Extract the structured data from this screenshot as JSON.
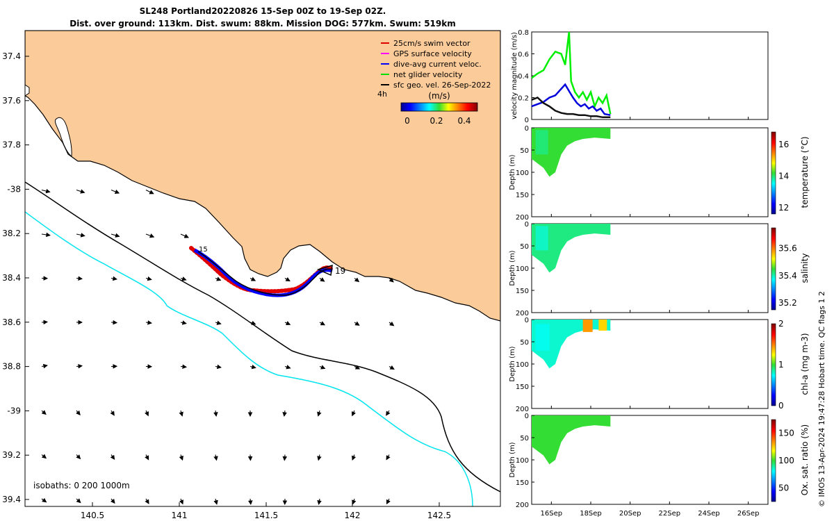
{
  "title": {
    "line1": "SL248 Portland20220826 15-Sep 00Z to 19-Sep 02Z.",
    "line2": "Dist. over ground: 113km. Dist. swum: 88km. Mission DOG: 577km. Swum: 519km"
  },
  "map": {
    "lon_ticks": [
      "140.5",
      "141",
      "141.5",
      "142",
      "142.5"
    ],
    "lat_ticks": [
      "37.4",
      "37.6",
      "37.8",
      "-38",
      "38.2",
      "38.4",
      "38.6",
      "38.8",
      "-39",
      "39.2",
      "39.4"
    ],
    "isobath_label": "isobaths: 0   200  1000m",
    "track_labels": [
      "15",
      "19"
    ],
    "legend": [
      {
        "label": "25cm/s swim vector",
        "color": "#e00000"
      },
      {
        "label": "GPS surface velocity",
        "color": "#ff00ff"
      },
      {
        "label": "dive-avg current veloc.",
        "color": "#0000ff"
      },
      {
        "label": "net glider velocity",
        "color": "#00e000"
      },
      {
        "label": "sfc geo. vel. 26-Sep-2022",
        "color": "#000000"
      }
    ],
    "legend_extra": "4h",
    "colorbar_title": "(m/s)",
    "colorbar_ticks": [
      "0",
      "0.2",
      "0.4"
    ],
    "colors": {
      "land": "#fccb9a",
      "sea": "#ffffff",
      "isobath_200": "#000000",
      "isobath_1000": "#00e5ee"
    }
  },
  "time_axis": {
    "ticks": [
      "16Sep",
      "18Sep",
      "20Sep",
      "22Sep",
      "24Sep",
      "26Sep"
    ]
  },
  "chart_data": [
    {
      "type": "line",
      "ylabel": "velocity magnitude (m/s)",
      "ylim": [
        0,
        0.8
      ],
      "yticks": [
        "0",
        "0.2",
        "0.4",
        "0.6",
        "0.8"
      ],
      "xlim": [
        15.0,
        27.0
      ],
      "series": [
        {
          "color": "#00ee00",
          "x": [
            15.0,
            15.3,
            15.6,
            15.9,
            16.2,
            16.5,
            16.7,
            16.9,
            17.0,
            17.2,
            17.4,
            17.6,
            17.8,
            18.0,
            18.2,
            18.4,
            18.6,
            18.8,
            19.0
          ],
          "y": [
            0.38,
            0.42,
            0.45,
            0.55,
            0.62,
            0.6,
            0.5,
            0.8,
            0.35,
            0.25,
            0.2,
            0.25,
            0.18,
            0.25,
            0.12,
            0.2,
            0.15,
            0.22,
            0.05
          ]
        },
        {
          "color": "#0000dd",
          "x": [
            15.0,
            15.3,
            15.6,
            15.9,
            16.2,
            16.5,
            16.7,
            16.9,
            17.1,
            17.3,
            17.5,
            17.7,
            17.9,
            18.1,
            18.3,
            18.5,
            18.7,
            19.0
          ],
          "y": [
            0.12,
            0.14,
            0.16,
            0.2,
            0.22,
            0.28,
            0.32,
            0.26,
            0.2,
            0.15,
            0.12,
            0.14,
            0.1,
            0.12,
            0.08,
            0.1,
            0.05,
            0.04
          ]
        },
        {
          "color": "#111111",
          "x": [
            15.0,
            15.3,
            15.6,
            15.9,
            16.2,
            16.5,
            16.8,
            17.1,
            17.4,
            17.7,
            18.0,
            18.3,
            18.6,
            19.0
          ],
          "y": [
            0.18,
            0.2,
            0.15,
            0.12,
            0.08,
            0.06,
            0.05,
            0.05,
            0.04,
            0.04,
            0.03,
            0.03,
            0.02,
            0.02
          ]
        }
      ]
    },
    {
      "type": "heatmap",
      "variable": "temperature",
      "colorbar_label": "temperature (°C)",
      "colorbar_ticks": [
        "12",
        "14",
        "16"
      ],
      "clim": [
        11.6,
        16.8
      ],
      "ylabel": "Depth (m)",
      "ylim": [
        0,
        200
      ],
      "yticks": [
        "0",
        "50",
        "100",
        "150",
        "200"
      ],
      "value": 14.2
    },
    {
      "type": "heatmap",
      "variable": "salinity",
      "colorbar_label": "salinity",
      "colorbar_ticks": [
        "35.2",
        "35.4",
        "35.6"
      ],
      "clim": [
        35.15,
        35.75
      ],
      "ylabel": "Depth (m)",
      "ylim": [
        0,
        200
      ],
      "yticks": [
        "0",
        "50",
        "100",
        "150",
        "200"
      ],
      "value": 35.42
    },
    {
      "type": "heatmap",
      "variable": "chl-a",
      "colorbar_label": "chl-a (mg m-3)",
      "colorbar_ticks": [
        "0",
        "1",
        "2"
      ],
      "clim": [
        0,
        2
      ],
      "ylabel": "Depth (m)",
      "ylim": [
        0,
        200
      ],
      "yticks": [
        "0",
        "50",
        "100",
        "150",
        "200"
      ],
      "value": 0.8
    },
    {
      "type": "heatmap",
      "variable": "oxygen saturation",
      "colorbar_label": "Ox. sat. ratio (%)",
      "colorbar_ticks": [
        "50",
        "100",
        "150"
      ],
      "clim": [
        25,
        175
      ],
      "ylabel": "Depth (m)",
      "ylim": [
        0,
        200
      ],
      "yticks": [
        "0",
        "50",
        "100",
        "150",
        "200"
      ],
      "value": 100
    }
  ],
  "footer_note": "© IMOS 13-Apr-2024 19:47:28 Hobart time. QC flags 1  2"
}
